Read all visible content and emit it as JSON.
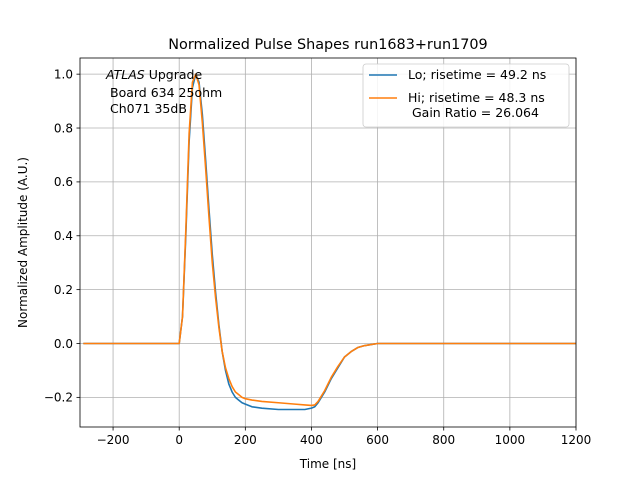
{
  "chart_data": {
    "type": "line",
    "title": "Normalized Pulse Shapes run1683+run1709",
    "xlabel": "Time [ns]",
    "ylabel": "Normalized Amplitude (A.U.)",
    "xlim": [
      -300,
      1200
    ],
    "ylim": [
      -0.31,
      1.06
    ],
    "x_ticks": [
      -200,
      0,
      200,
      400,
      600,
      800,
      1000,
      1200
    ],
    "x_tick_labels": [
      "−200",
      "0",
      "200",
      "400",
      "600",
      "800",
      "1000",
      "1200"
    ],
    "y_ticks": [
      -0.2,
      0.0,
      0.2,
      0.4,
      0.6,
      0.8,
      1.0
    ],
    "y_tick_labels": [
      "−0.2",
      "0.0",
      "0.2",
      "0.4",
      "0.6",
      "0.8",
      "1.0"
    ],
    "grid": true,
    "legend_position": "top-right",
    "annotation": {
      "atlas": "ATLAS",
      "upgrade": " Upgrade",
      "line2": "Board 634 25ohm",
      "line3": "Ch071 35dB"
    },
    "series": [
      {
        "name": "Lo; risetime = 49.2 ns",
        "color": "#1f77b4",
        "x": [
          -290,
          -200,
          -100,
          0,
          10,
          20,
          30,
          40,
          50,
          60,
          70,
          80,
          90,
          100,
          110,
          120,
          130,
          140,
          150,
          160,
          170,
          180,
          190,
          200,
          220,
          250,
          300,
          350,
          380,
          400,
          410,
          420,
          440,
          460,
          480,
          500,
          520,
          540,
          560,
          580,
          600,
          650,
          700,
          800,
          900,
          1000,
          1100,
          1200
        ],
        "y": [
          0.0,
          0.0,
          0.0,
          0.0,
          0.1,
          0.4,
          0.75,
          0.95,
          1.0,
          0.97,
          0.85,
          0.68,
          0.5,
          0.33,
          0.19,
          0.07,
          -0.03,
          -0.1,
          -0.15,
          -0.18,
          -0.2,
          -0.21,
          -0.22,
          -0.225,
          -0.235,
          -0.24,
          -0.245,
          -0.245,
          -0.245,
          -0.24,
          -0.235,
          -0.22,
          -0.18,
          -0.13,
          -0.09,
          -0.05,
          -0.03,
          -0.015,
          -0.008,
          -0.004,
          0.0,
          0.0,
          0.0,
          0.0,
          0.0,
          0.0,
          0.0,
          0.0
        ]
      },
      {
        "name": "Hi; risetime = 48.3 ns\n Gain Ratio = 26.064",
        "color": "#ff7f0e",
        "x": [
          -290,
          -200,
          -100,
          0,
          10,
          20,
          30,
          40,
          50,
          60,
          70,
          80,
          90,
          100,
          110,
          120,
          130,
          140,
          150,
          160,
          170,
          180,
          190,
          200,
          220,
          250,
          300,
          350,
          380,
          400,
          410,
          420,
          440,
          460,
          480,
          500,
          520,
          540,
          560,
          580,
          600,
          650,
          700,
          800,
          900,
          1000,
          1100,
          1200
        ],
        "y": [
          0.0,
          0.0,
          0.0,
          0.0,
          0.1,
          0.42,
          0.78,
          0.97,
          1.0,
          0.96,
          0.82,
          0.65,
          0.47,
          0.3,
          0.17,
          0.06,
          -0.03,
          -0.09,
          -0.13,
          -0.16,
          -0.18,
          -0.19,
          -0.2,
          -0.205,
          -0.21,
          -0.215,
          -0.22,
          -0.225,
          -0.228,
          -0.23,
          -0.228,
          -0.215,
          -0.175,
          -0.125,
          -0.085,
          -0.05,
          -0.03,
          -0.015,
          -0.008,
          -0.004,
          0.0,
          0.0,
          0.0,
          0.0,
          0.0,
          0.0,
          0.0,
          0.0
        ]
      }
    ]
  }
}
